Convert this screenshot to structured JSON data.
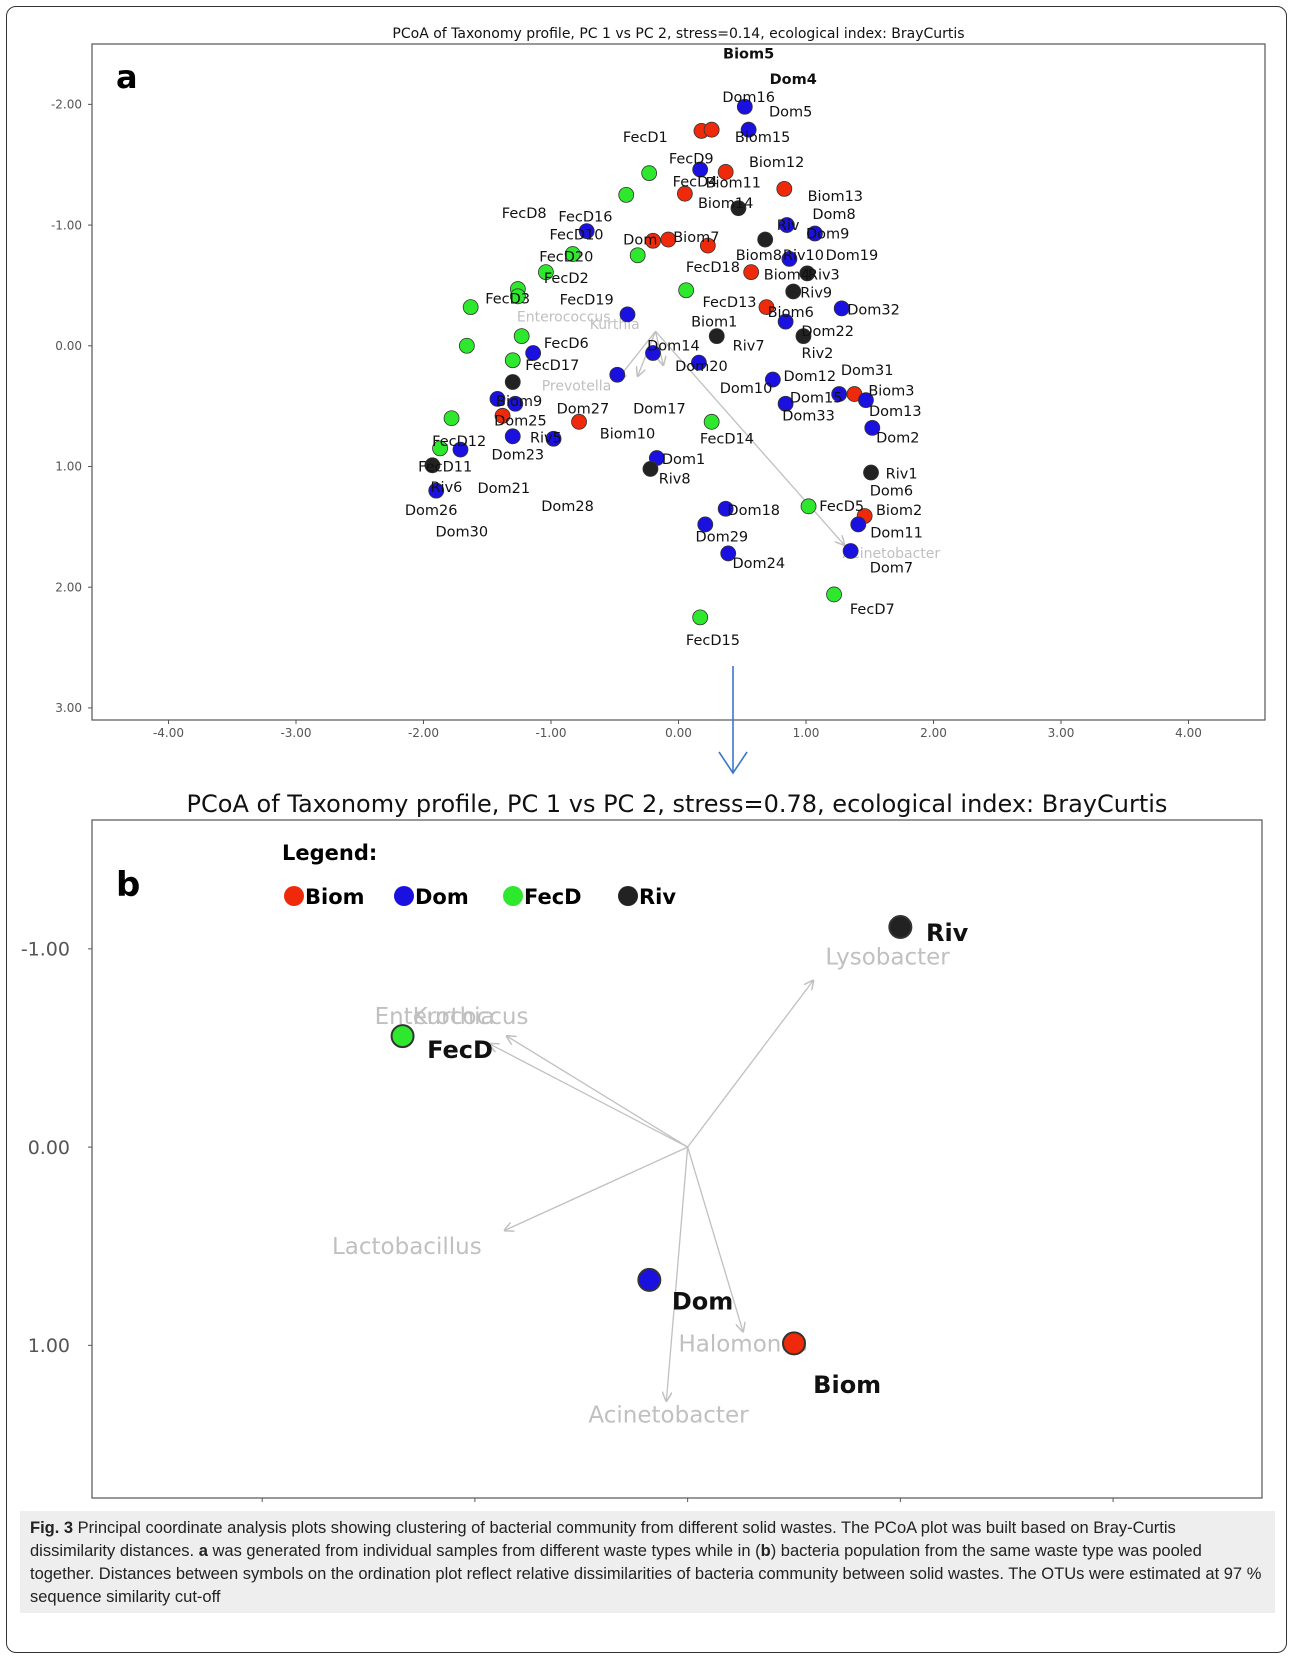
{
  "figure": {
    "caption_label": "Fig. 3",
    "caption_parts": [
      {
        "t": " Principal coordinate analysis plots showing clustering of bacterial community from different solid wastes. The PCoA plot was built based on Bray-Curtis dissimilarity distances. ",
        "b": false
      },
      {
        "t": "a",
        "b": true
      },
      {
        "t": " was generated from individual samples from different waste types while in (",
        "b": false
      },
      {
        "t": "b",
        "b": true
      },
      {
        "t": ") bacteria population from the same waste type was pooled together. Distances between symbols on the ordination plot reflect relative dissimilarities of bacteria community between solid wastes. The OTUs were estimated at 97 % sequence similarity cut-off",
        "b": false
      }
    ]
  },
  "colors": {
    "Biom": "#ee2a0a",
    "Dom": "#1a10e0",
    "FecD": "#2ee82e",
    "Riv": "#222222",
    "arrow": "#c0c0c0",
    "transition_arrow": "#3a78c9"
  },
  "chart_data": [
    {
      "panel": "a",
      "type": "scatter",
      "title": "PCoA of Taxonomy profile, PC 1 vs PC 2, stress=0.14, ecological index: BrayCurtis",
      "xlim": [
        -4.6,
        4.6
      ],
      "ylim_top_to_bottom": [
        -2.5,
        3.1
      ],
      "y_axis_inverted": true,
      "xticks": [
        "-4.00",
        "-3.00",
        "-2.00",
        "-1.00",
        "0.00",
        "1.00",
        "2.00",
        "3.00",
        "4.00"
      ],
      "yticks": [
        "-2.00",
        "-1.00",
        "0.00",
        "1.00",
        "2.00",
        "3.00"
      ],
      "points": [
        {
          "g": "Dom",
          "x": 0.52,
          "y": -1.98
        },
        {
          "g": "Biom",
          "x": 0.18,
          "y": -1.78
        },
        {
          "g": "Biom",
          "x": 0.26,
          "y": -1.79
        },
        {
          "g": "Dom",
          "x": 0.55,
          "y": -1.79
        },
        {
          "g": "FecD",
          "x": -0.23,
          "y": -1.43
        },
        {
          "g": "Dom",
          "x": 0.17,
          "y": -1.46
        },
        {
          "g": "Biom",
          "x": 0.37,
          "y": -1.44
        },
        {
          "g": "FecD",
          "x": -0.41,
          "y": -1.25
        },
        {
          "g": "Biom",
          "x": 0.05,
          "y": -1.26
        },
        {
          "g": "Biom",
          "x": 0.83,
          "y": -1.3
        },
        {
          "g": "Riv",
          "x": 0.47,
          "y": -1.14
        },
        {
          "g": "Dom",
          "x": -0.72,
          "y": -0.95
        },
        {
          "g": "Biom",
          "x": -0.2,
          "y": -0.87
        },
        {
          "g": "Biom",
          "x": -0.08,
          "y": -0.88
        },
        {
          "g": "Biom",
          "x": 0.23,
          "y": -0.83
        },
        {
          "g": "Riv",
          "x": 0.68,
          "y": -0.88
        },
        {
          "g": "Dom",
          "x": 0.85,
          "y": -1.0
        },
        {
          "g": "Dom",
          "x": 1.07,
          "y": -0.93
        },
        {
          "g": "FecD",
          "x": -0.83,
          "y": -0.76
        },
        {
          "g": "FecD",
          "x": -0.32,
          "y": -0.75
        },
        {
          "g": "Dom",
          "x": 0.87,
          "y": -0.72
        },
        {
          "g": "FecD",
          "x": -1.04,
          "y": -0.61
        },
        {
          "g": "Biom",
          "x": 0.57,
          "y": -0.61
        },
        {
          "g": "Riv",
          "x": 1.01,
          "y": -0.6
        },
        {
          "g": "FecD",
          "x": -1.26,
          "y": -0.47
        },
        {
          "g": "FecD",
          "x": 0.06,
          "y": -0.46
        },
        {
          "g": "Riv",
          "x": 0.9,
          "y": -0.45
        },
        {
          "g": "FecD",
          "x": -1.26,
          "y": -0.41
        },
        {
          "g": "FecD",
          "x": -1.63,
          "y": -0.32
        },
        {
          "g": "Dom",
          "x": -0.4,
          "y": -0.26
        },
        {
          "g": "Biom",
          "x": 0.69,
          "y": -0.32
        },
        {
          "g": "Dom",
          "x": 1.28,
          "y": -0.31
        },
        {
          "g": "Dom",
          "x": 0.84,
          "y": -0.2
        },
        {
          "g": "FecD",
          "x": -1.23,
          "y": -0.08
        },
        {
          "g": "Riv",
          "x": 0.3,
          "y": -0.08
        },
        {
          "g": "Riv",
          "x": 0.98,
          "y": -0.08
        },
        {
          "g": "FecD",
          "x": -1.66,
          "y": 0.0
        },
        {
          "g": "Dom",
          "x": -1.14,
          "y": 0.06
        },
        {
          "g": "Dom",
          "x": -0.2,
          "y": 0.06
        },
        {
          "g": "FecD",
          "x": -1.3,
          "y": 0.12
        },
        {
          "g": "Dom",
          "x": 0.16,
          "y": 0.14
        },
        {
          "g": "Dom",
          "x": -0.48,
          "y": 0.24
        },
        {
          "g": "Dom",
          "x": 0.74,
          "y": 0.28
        },
        {
          "g": "Riv",
          "x": -1.3,
          "y": 0.3
        },
        {
          "g": "Dom",
          "x": 1.26,
          "y": 0.4
        },
        {
          "g": "Biom",
          "x": 1.38,
          "y": 0.4
        },
        {
          "g": "Dom",
          "x": 1.47,
          "y": 0.45
        },
        {
          "g": "Dom",
          "x": -1.42,
          "y": 0.44
        },
        {
          "g": "Dom",
          "x": -1.28,
          "y": 0.48
        },
        {
          "g": "Dom",
          "x": 0.84,
          "y": 0.48
        },
        {
          "g": "Biom",
          "x": -1.38,
          "y": 0.58
        },
        {
          "g": "FecD",
          "x": -1.78,
          "y": 0.6
        },
        {
          "g": "Biom",
          "x": -0.78,
          "y": 0.63
        },
        {
          "g": "FecD",
          "x": 0.26,
          "y": 0.63
        },
        {
          "g": "Dom",
          "x": 1.52,
          "y": 0.68
        },
        {
          "g": "Dom",
          "x": -1.3,
          "y": 0.75
        },
        {
          "g": "Dom",
          "x": -0.98,
          "y": 0.77
        },
        {
          "g": "FecD",
          "x": -1.87,
          "y": 0.85
        },
        {
          "g": "Dom",
          "x": -1.71,
          "y": 0.86
        },
        {
          "g": "Dom",
          "x": -0.17,
          "y": 0.93
        },
        {
          "g": "Riv",
          "x": -1.93,
          "y": 0.99
        },
        {
          "g": "Riv",
          "x": -0.22,
          "y": 1.02
        },
        {
          "g": "Riv",
          "x": 1.51,
          "y": 1.05
        },
        {
          "g": "Dom",
          "x": -1.9,
          "y": 1.2
        },
        {
          "g": "Dom",
          "x": 0.37,
          "y": 1.35
        },
        {
          "g": "FecD",
          "x": 1.02,
          "y": 1.33
        },
        {
          "g": "Biom",
          "x": 1.46,
          "y": 1.41
        },
        {
          "g": "Dom",
          "x": 1.41,
          "y": 1.48
        },
        {
          "g": "Dom",
          "x": 0.21,
          "y": 1.48
        },
        {
          "g": "Dom",
          "x": 1.35,
          "y": 1.7
        },
        {
          "g": "Dom",
          "x": 0.39,
          "y": 1.72
        },
        {
          "g": "FecD",
          "x": 1.22,
          "y": 2.06
        },
        {
          "g": "FecD",
          "x": 0.17,
          "y": 2.25
        }
      ],
      "labels": [
        {
          "t": "Biom5",
          "x": 0.55,
          "y": -2.38,
          "bold": true
        },
        {
          "t": "Dom4",
          "x": 0.9,
          "y": -2.17,
          "bold": true
        },
        {
          "t": "Dom16",
          "x": 0.55,
          "y": -2.02
        },
        {
          "t": "Dom5",
          "x": 0.88,
          "y": -1.9
        },
        {
          "t": "Biom15",
          "x": 0.66,
          "y": -1.69
        },
        {
          "t": "FecD1",
          "x": -0.26,
          "y": -1.69
        },
        {
          "t": "FecD9",
          "x": 0.1,
          "y": -1.51
        },
        {
          "t": "Biom12",
          "x": 0.77,
          "y": -1.48
        },
        {
          "t": "FecD4",
          "x": 0.13,
          "y": -1.32
        },
        {
          "t": "Biom11",
          "x": 0.43,
          "y": -1.31
        },
        {
          "t": "Biom14",
          "x": 0.37,
          "y": -1.14
        },
        {
          "t": "Biom13",
          "x": 1.23,
          "y": -1.2
        },
        {
          "t": "FecD8",
          "x": -1.21,
          "y": -1.06
        },
        {
          "t": "FecD16",
          "x": -0.73,
          "y": -1.03
        },
        {
          "t": "Riv",
          "x": 0.86,
          "y": -0.96
        },
        {
          "t": "Dom8",
          "x": 1.22,
          "y": -1.05
        },
        {
          "t": "FecD10",
          "x": -0.8,
          "y": -0.88
        },
        {
          "t": "Dom",
          "x": -0.3,
          "y": -0.84
        },
        {
          "t": "Biom7",
          "x": 0.14,
          "y": -0.86
        },
        {
          "t": "Dom9",
          "x": 1.17,
          "y": -0.89
        },
        {
          "t": "FecD20",
          "x": -0.88,
          "y": -0.7
        },
        {
          "t": "FecD18",
          "x": 0.27,
          "y": -0.61
        },
        {
          "t": "Biom8",
          "x": 0.63,
          "y": -0.71
        },
        {
          "t": "Riv10",
          "x": 0.98,
          "y": -0.71
        },
        {
          "t": "Dom19",
          "x": 1.36,
          "y": -0.71
        },
        {
          "t": "FecD2",
          "x": -0.88,
          "y": -0.52
        },
        {
          "t": "Biom4",
          "x": 0.85,
          "y": -0.55
        },
        {
          "t": "Riv3",
          "x": 1.14,
          "y": -0.55
        },
        {
          "t": "FecD3",
          "x": -1.34,
          "y": -0.35
        },
        {
          "t": "FecD19",
          "x": -0.72,
          "y": -0.34
        },
        {
          "t": "Riv9",
          "x": 1.08,
          "y": -0.4
        },
        {
          "t": "FecD13",
          "x": 0.4,
          "y": -0.32
        },
        {
          "t": "Dom32",
          "x": 1.53,
          "y": -0.26
        },
        {
          "t": "Biom6",
          "x": 0.88,
          "y": -0.24
        },
        {
          "t": "Biom1",
          "x": 0.28,
          "y": -0.16
        },
        {
          "t": "Dom22",
          "x": 1.17,
          "y": -0.08
        },
        {
          "t": "FecD6",
          "x": -0.88,
          "y": 0.02
        },
        {
          "t": "Dom14",
          "x": -0.04,
          "y": 0.04
        },
        {
          "t": "Riv7",
          "x": 0.55,
          "y": 0.04
        },
        {
          "t": "Riv2",
          "x": 1.09,
          "y": 0.1
        },
        {
          "t": "FecD17",
          "x": -0.99,
          "y": 0.2
        },
        {
          "t": "Dom20",
          "x": 0.18,
          "y": 0.21
        },
        {
          "t": "Dom31",
          "x": 1.48,
          "y": 0.24
        },
        {
          "t": "Dom12",
          "x": 1.03,
          "y": 0.29
        },
        {
          "t": "Dom10",
          "x": 0.53,
          "y": 0.39
        },
        {
          "t": "Biom3",
          "x": 1.67,
          "y": 0.41
        },
        {
          "t": "Biom9",
          "x": -1.25,
          "y": 0.5
        },
        {
          "t": "Dom15",
          "x": 1.08,
          "y": 0.47
        },
        {
          "t": "Dom27",
          "x": -0.75,
          "y": 0.56
        },
        {
          "t": "Dom17",
          "x": -0.15,
          "y": 0.56
        },
        {
          "t": "Dom13",
          "x": 1.7,
          "y": 0.58
        },
        {
          "t": "Dom25",
          "x": -1.24,
          "y": 0.66
        },
        {
          "t": "Dom33",
          "x": 1.02,
          "y": 0.62
        },
        {
          "t": "FecD12",
          "x": -1.72,
          "y": 0.83
        },
        {
          "t": "Riv5",
          "x": -1.04,
          "y": 0.8
        },
        {
          "t": "Biom10",
          "x": -0.4,
          "y": 0.77
        },
        {
          "t": "FecD14",
          "x": 0.38,
          "y": 0.81
        },
        {
          "t": "Dom2",
          "x": 1.72,
          "y": 0.8
        },
        {
          "t": "Dom23",
          "x": -1.26,
          "y": 0.94
        },
        {
          "t": "Dom1",
          "x": 0.04,
          "y": 0.98
        },
        {
          "t": "FecD11",
          "x": -1.83,
          "y": 1.04
        },
        {
          "t": "Riv1",
          "x": 1.75,
          "y": 1.1
        },
        {
          "t": "Riv8",
          "x": -0.03,
          "y": 1.14
        },
        {
          "t": "Dom6",
          "x": 1.67,
          "y": 1.24
        },
        {
          "t": "Riv6",
          "x": -1.82,
          "y": 1.21
        },
        {
          "t": "Dom21",
          "x": -1.37,
          "y": 1.22
        },
        {
          "t": "FecD5",
          "x": 1.28,
          "y": 1.37
        },
        {
          "t": "Biom2",
          "x": 1.73,
          "y": 1.4
        },
        {
          "t": "Dom18",
          "x": 0.59,
          "y": 1.4
        },
        {
          "t": "Dom28",
          "x": -0.87,
          "y": 1.37
        },
        {
          "t": "Dom26",
          "x": -1.94,
          "y": 1.4
        },
        {
          "t": "Dom11",
          "x": 1.71,
          "y": 1.59
        },
        {
          "t": "Dom29",
          "x": 0.34,
          "y": 1.62
        },
        {
          "t": "Dom30",
          "x": -1.7,
          "y": 1.58
        },
        {
          "t": "Dom24",
          "x": 0.63,
          "y": 1.84
        },
        {
          "t": "Dom7",
          "x": 1.67,
          "y": 1.88
        },
        {
          "t": "FecD7",
          "x": 1.52,
          "y": 2.22
        },
        {
          "t": "FecD15",
          "x": 0.27,
          "y": 2.48
        }
      ],
      "vectors": [
        {
          "label": "Enterococcus",
          "x2": -0.48,
          "y2": 0.28,
          "lx": -0.9,
          "ly": -0.2
        },
        {
          "label": "Kurthia",
          "x2": -0.12,
          "y2": 0.16,
          "lx": -0.5,
          "ly": -0.14
        },
        {
          "label": "Prevotella",
          "x2": -0.32,
          "y2": 0.25,
          "lx": -0.8,
          "ly": 0.37
        },
        {
          "label": "Acinetobacter",
          "x2": 1.3,
          "y2": 1.65,
          "lx": 1.67,
          "ly": 1.76
        }
      ],
      "vector_origin": {
        "x": -0.18,
        "y": -0.12
      }
    },
    {
      "panel": "b",
      "type": "scatter",
      "title": "PCoA of Taxonomy profile, PC 1 vs PC 2, stress=0.78, ecological index: BrayCurtis",
      "xlim": [
        -2.8,
        2.7
      ],
      "ylim_top_to_bottom": [
        -1.65,
        1.77
      ],
      "y_axis_inverted": true,
      "xticks": [
        "-2.00",
        "-1.00",
        "0.00",
        "1.00",
        "2.00"
      ],
      "yticks": [
        "-1.00",
        "0.00",
        "1.00"
      ],
      "legend_title": "Legend:",
      "legend": [
        "Biom",
        "Dom",
        "FecD",
        "Riv"
      ],
      "points": [
        {
          "g": "Riv",
          "x": 1.0,
          "y": -1.11
        },
        {
          "g": "FecD",
          "x": -1.34,
          "y": -0.56
        },
        {
          "g": "Dom",
          "x": -0.18,
          "y": 0.67
        },
        {
          "g": "Biom",
          "x": 0.5,
          "y": 0.99
        }
      ],
      "point_labels": [
        {
          "t": "Riv",
          "x": 1.22,
          "y": -1.04
        },
        {
          "t": "FecD",
          "x": -1.07,
          "y": -0.45
        },
        {
          "t": "Dom",
          "x": 0.07,
          "y": 0.82
        },
        {
          "t": "Biom",
          "x": 0.75,
          "y": 1.24
        }
      ],
      "vectors": [
        {
          "label": "Lysobacter",
          "x2": 0.59,
          "y2": -0.84,
          "lx": 0.94,
          "ly": -0.92
        },
        {
          "label": "Enterococcus",
          "x2": -0.93,
          "y2": -0.52,
          "lx": -1.11,
          "ly": -0.62
        },
        {
          "label": "Kurthia",
          "x2": -0.85,
          "y2": -0.56,
          "lx": -1.1,
          "ly": -0.62
        },
        {
          "label": "Lactobacillus",
          "x2": -0.86,
          "y2": 0.42,
          "lx": -1.32,
          "ly": 0.54
        },
        {
          "label": "Halomonas",
          "x2": 0.26,
          "y2": 0.93,
          "lx": 0.26,
          "ly": 1.03
        },
        {
          "label": "Acinetobacter",
          "x2": -0.1,
          "y2": 1.28,
          "lx": -0.09,
          "ly": 1.39
        }
      ],
      "vector_origin": {
        "x": 0.0,
        "y": 0.0
      }
    }
  ]
}
